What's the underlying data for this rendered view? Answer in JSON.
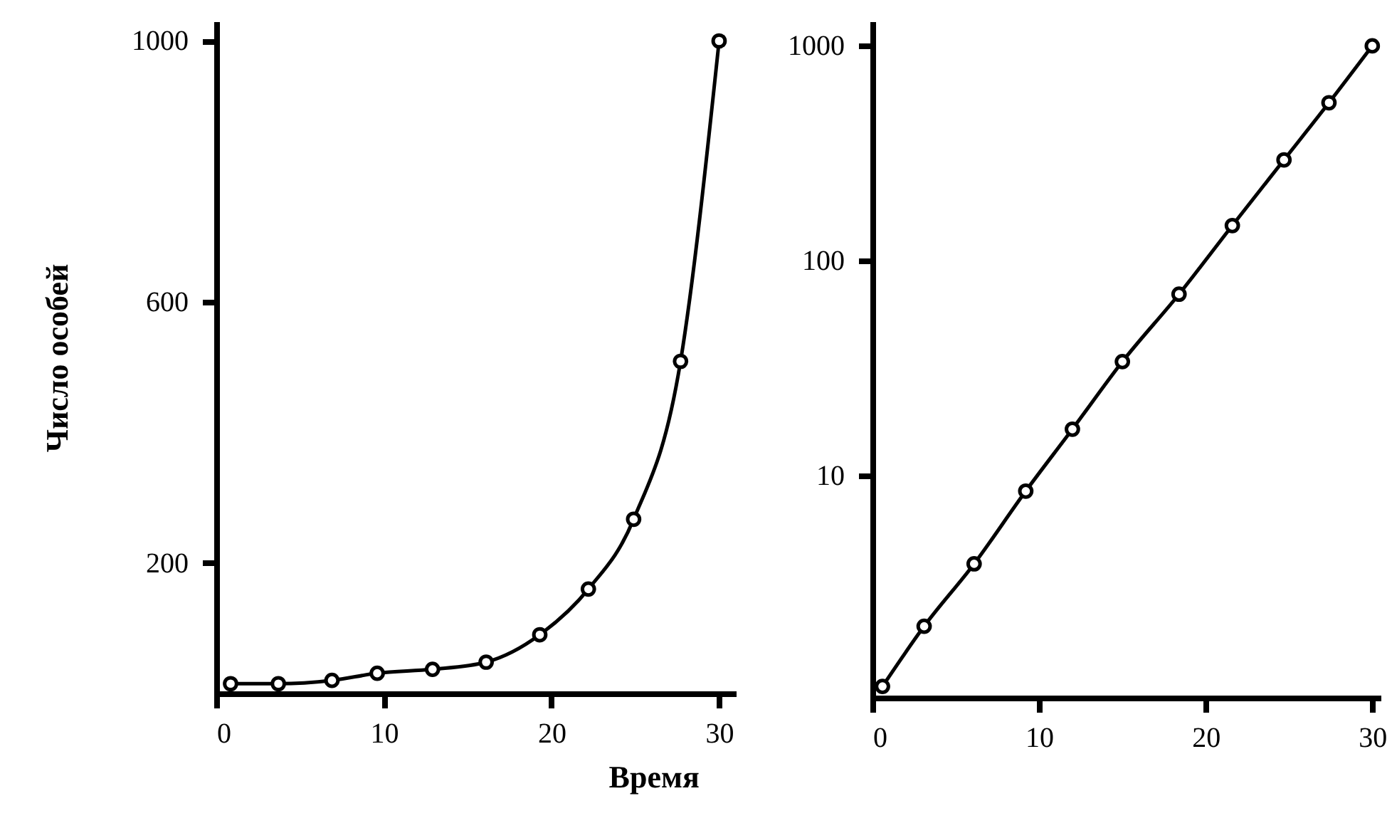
{
  "chart_data": [
    {
      "type": "line",
      "ylabel": "Число особей",
      "x": [
        0.85,
        3.7,
        6.9,
        9.6,
        12.9,
        16.1,
        19.3,
        22.2,
        24.9,
        27.7,
        30
      ],
      "series": [
        {
          "color": "#000000",
          "values": [
            15,
            15,
            20,
            31,
            37,
            48,
            90,
            160,
            267,
            509,
            1000
          ]
        }
      ],
      "xlim": [
        0,
        31
      ],
      "ylim": [
        0,
        1030
      ],
      "xticks": [
        0,
        10,
        20,
        30
      ],
      "yticks": [
        200,
        600,
        1000
      ],
      "marker": "circle",
      "line_style": "solid"
    },
    {
      "type": "line",
      "xlabel": "Время",
      "x": [
        0.6,
        3.1,
        6.1,
        9.2,
        12,
        15,
        18.4,
        21.6,
        24.7,
        27.4,
        30
      ],
      "series": [
        {
          "color": "#000000",
          "values": [
            1.05,
            2,
            3.9,
            8.5,
            16.5,
            34,
            70,
            146,
            295,
            544,
            1000
          ]
        }
      ],
      "xlim": [
        0,
        30.5
      ],
      "ylim": [
        0.93,
        1300
      ],
      "xticks": [
        0,
        10,
        20,
        30
      ],
      "yticks": [
        10,
        100,
        1000
      ],
      "log": "y",
      "marker": "circle",
      "line_style": "solid"
    }
  ]
}
